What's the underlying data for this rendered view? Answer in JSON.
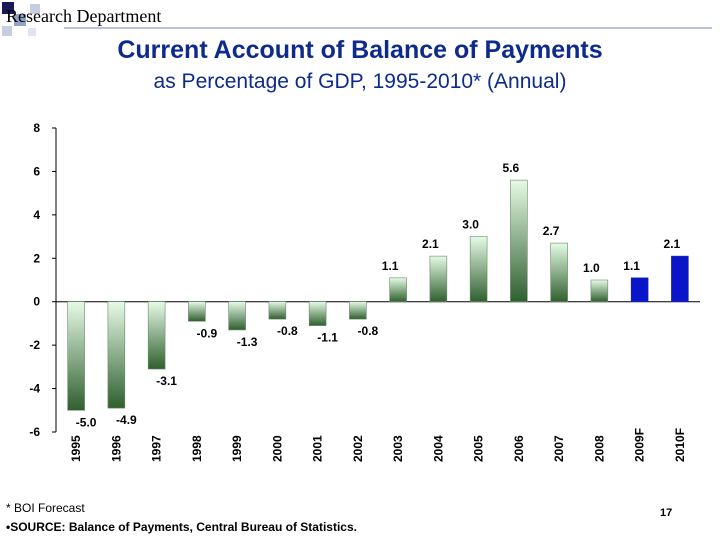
{
  "header": {
    "department": "Research Department"
  },
  "title": "Current Account of Balance of Payments",
  "subtitle": "as Percentage of GDP, 1995-2010* (Annual)",
  "chart_data": {
    "type": "bar",
    "categories": [
      "1995",
      "1996",
      "1997",
      "1998",
      "1999",
      "2000",
      "2001",
      "2002",
      "2003",
      "2004",
      "2005",
      "2006",
      "2007",
      "2008",
      "2009F",
      "2010F"
    ],
    "values": [
      -5.0,
      -4.9,
      -3.1,
      -0.9,
      -1.3,
      -0.8,
      -1.1,
      -0.8,
      1.1,
      2.1,
      3.0,
      5.6,
      2.7,
      1.0,
      1.1,
      2.1
    ],
    "data_labels": [
      "-5.0",
      "-4.9",
      "-3.1",
      "-0.9",
      "-1.3",
      "-0.8",
      "-1.1",
      "-0.8",
      "1.1",
      "2.1",
      "3.0",
      "5.6",
      "2.7",
      "1.0",
      "1.1",
      "2.1"
    ],
    "forecast": [
      false,
      false,
      false,
      false,
      false,
      false,
      false,
      false,
      false,
      false,
      false,
      false,
      false,
      false,
      true,
      true
    ],
    "ylim": [
      -6,
      8
    ],
    "yticks": [
      8,
      6,
      4,
      2,
      0,
      -2,
      -4,
      -6
    ],
    "colors": {
      "actual_top": "#e6fbe6",
      "actual_bottom": "#2f5f2f",
      "forecast": "#0a14c8",
      "forecast_edge": "#1a2a9a"
    },
    "xlabel": "",
    "ylabel": "",
    "grid": false
  },
  "footer": {
    "note": "* BOI Forecast",
    "source": "•SOURCE: Balance of Payments, Central Bureau of Statistics.",
    "page_number": "17"
  }
}
